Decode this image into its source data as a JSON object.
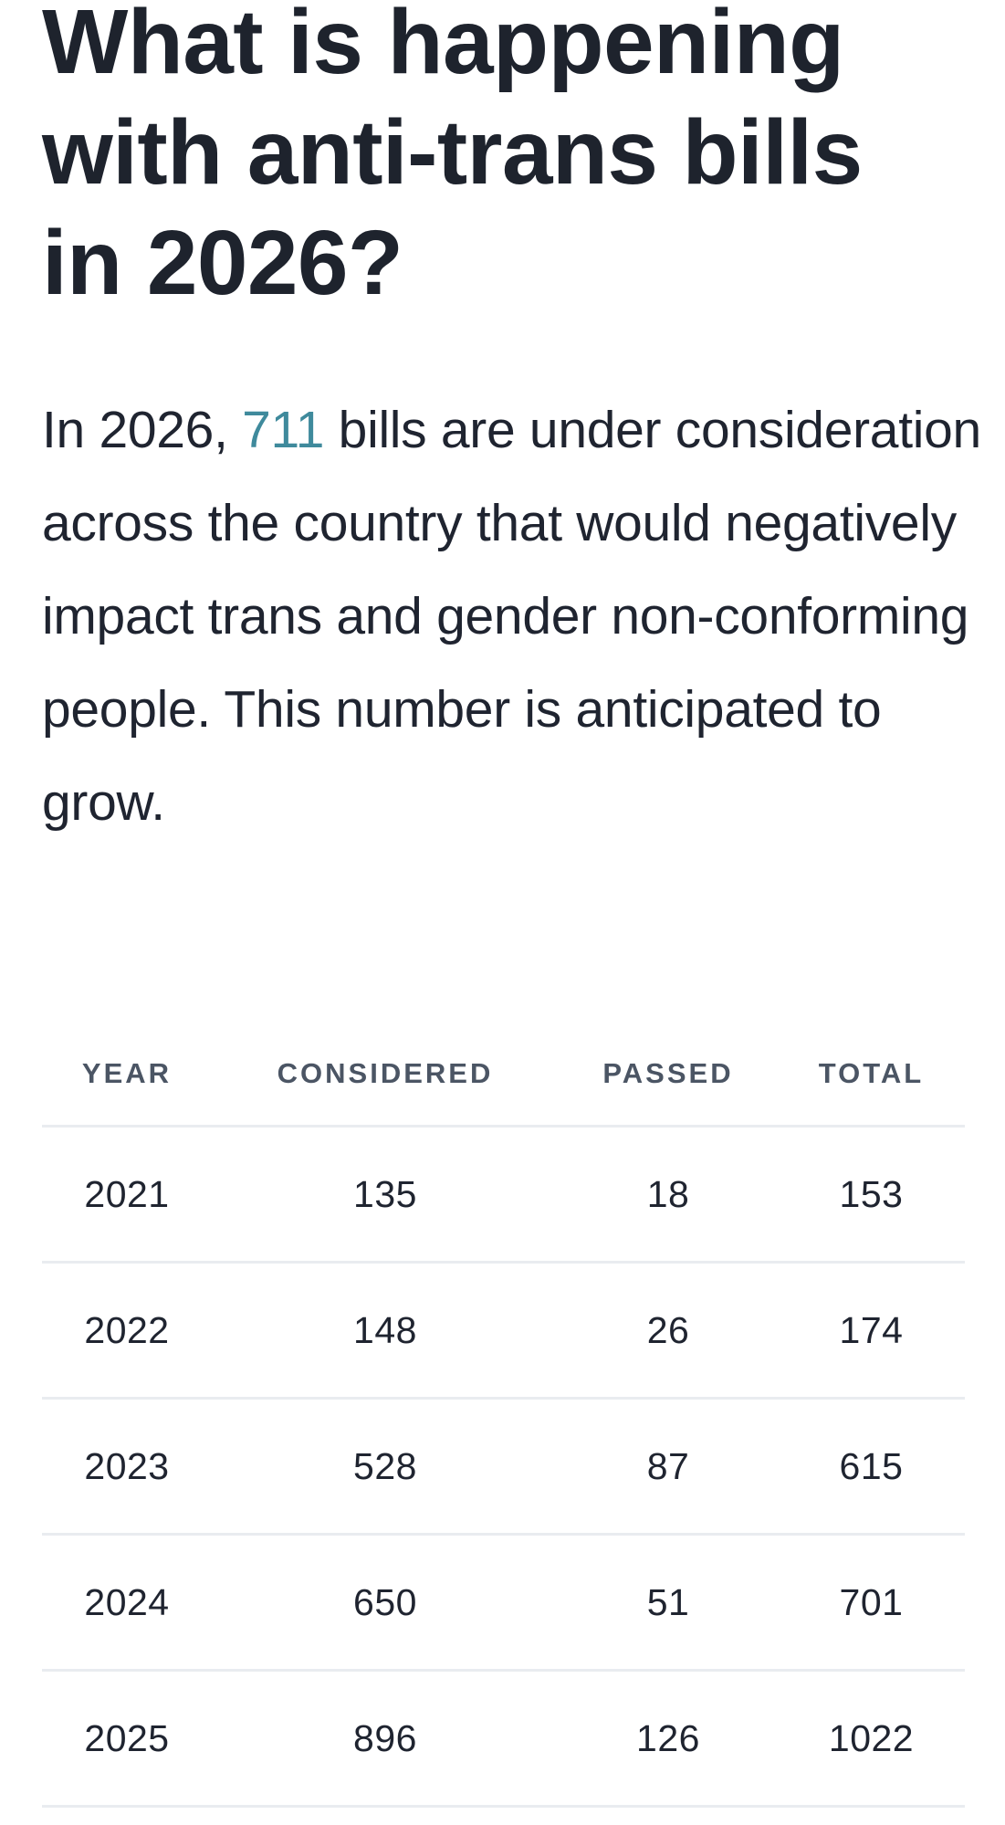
{
  "heading": "What is happening with anti-trans bills in 2026?",
  "intro": {
    "before": "In 2026, ",
    "highlight": "711",
    "after": " bills are under consideration across the country that would negatively impact trans and gender non-conforming people. This number is anticipated to grow."
  },
  "colors": {
    "highlight": "#3f8a9c"
  },
  "table": {
    "headers": [
      "YEAR",
      "CONSIDERED",
      "PASSED",
      "TOTAL"
    ],
    "rows": [
      [
        "2021",
        "135",
        "18",
        "153"
      ],
      [
        "2022",
        "148",
        "26",
        "174"
      ],
      [
        "2023",
        "528",
        "87",
        "615"
      ],
      [
        "2024",
        "650",
        "51",
        "701"
      ],
      [
        "2025",
        "896",
        "126",
        "1022"
      ]
    ]
  }
}
